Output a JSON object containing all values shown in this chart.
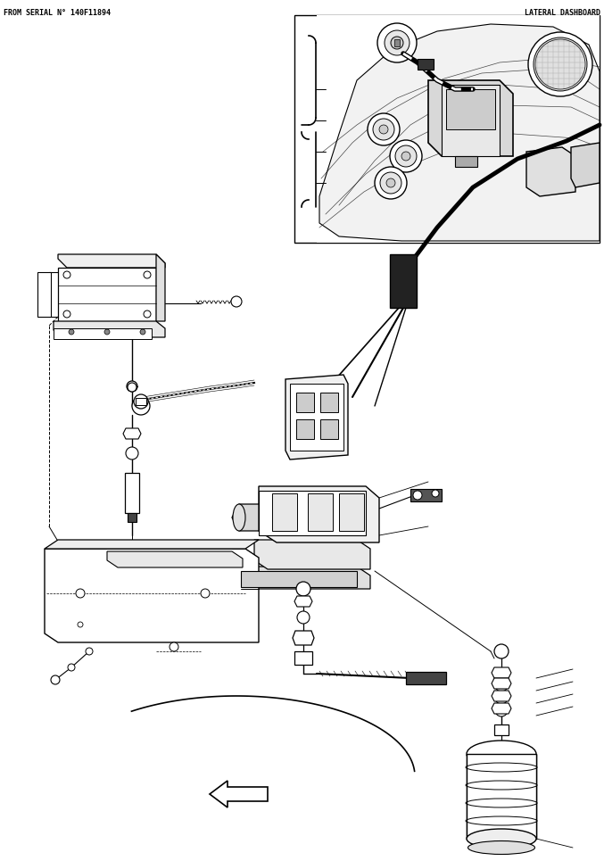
{
  "title_left": "FROM SERIAL N° 140F11894",
  "title_right": "LATERAL DASHBOARD",
  "bg_color": "#ffffff",
  "fig_width": 6.77,
  "fig_height": 9.65,
  "dpi": 100
}
